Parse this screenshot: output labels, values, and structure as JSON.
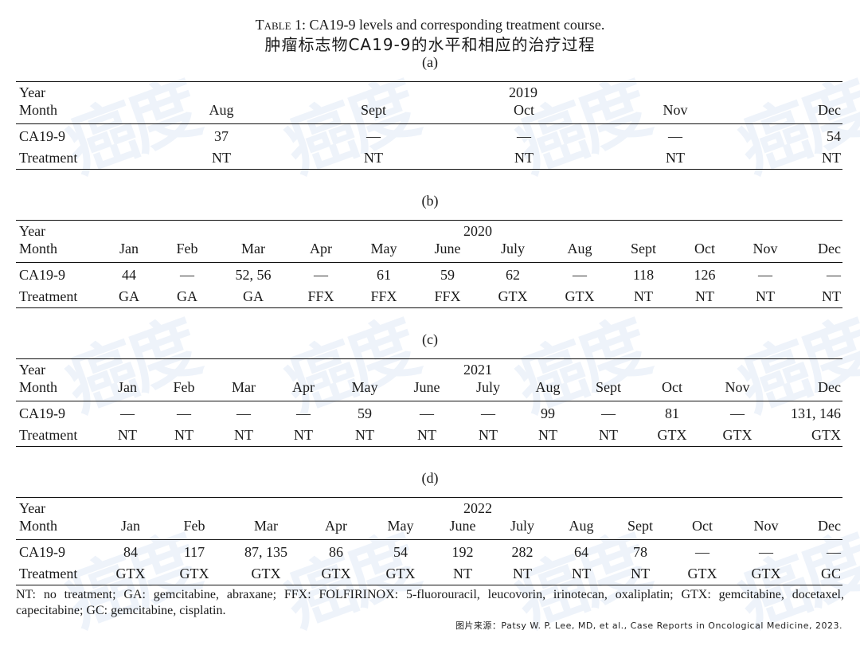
{
  "caption": {
    "table_label": "Table 1:",
    "title_en": "CA19-9 levels and corresponding treatment course.",
    "title_zh": "肿瘤标志物CA19-9的水平和相应的治疗过程"
  },
  "row_labels": {
    "year": "Year",
    "month": "Month",
    "ca199": "CA19-9",
    "treatment": "Treatment"
  },
  "tables": [
    {
      "label": "(a)",
      "year": "2019",
      "months": [
        "Aug",
        "Sept",
        "Oct",
        "Nov",
        "Dec"
      ],
      "ca199": [
        "37",
        "—",
        "—",
        "—",
        "54"
      ],
      "treatment": [
        "NT",
        "NT",
        "NT",
        "NT",
        "NT"
      ]
    },
    {
      "label": "(b)",
      "year": "2020",
      "months": [
        "Jan",
        "Feb",
        "Mar",
        "Apr",
        "May",
        "June",
        "July",
        "Aug",
        "Sept",
        "Oct",
        "Nov",
        "Dec"
      ],
      "ca199": [
        "44",
        "—",
        "52, 56",
        "—",
        "61",
        "59",
        "62",
        "—",
        "118",
        "126",
        "—",
        "—"
      ],
      "treatment": [
        "GA",
        "GA",
        "GA",
        "FFX",
        "FFX",
        "FFX",
        "GTX",
        "GTX",
        "NT",
        "NT",
        "NT",
        "NT"
      ]
    },
    {
      "label": "(c)",
      "year": "2021",
      "months": [
        "Jan",
        "Feb",
        "Mar",
        "Apr",
        "May",
        "June",
        "July",
        "Aug",
        "Sept",
        "Oct",
        "Nov",
        "Dec"
      ],
      "ca199": [
        "—",
        "—",
        "—",
        "—",
        "59",
        "—",
        "—",
        "99",
        "—",
        "81",
        "—",
        "131, 146"
      ],
      "treatment": [
        "NT",
        "NT",
        "NT",
        "NT",
        "NT",
        "NT",
        "NT",
        "NT",
        "NT",
        "GTX",
        "GTX",
        "GTX"
      ]
    },
    {
      "label": "(d)",
      "year": "2022",
      "months": [
        "Jan",
        "Feb",
        "Mar",
        "Apr",
        "May",
        "June",
        "July",
        "Aug",
        "Sept",
        "Oct",
        "Nov",
        "Dec"
      ],
      "ca199": [
        "84",
        "117",
        "87, 135",
        "86",
        "54",
        "192",
        "282",
        "64",
        "78",
        "—",
        "—",
        "—"
      ],
      "treatment": [
        "GTX",
        "GTX",
        "GTX",
        "GTX",
        "GTX",
        "NT",
        "NT",
        "NT",
        "NT",
        "GTX",
        "GTX",
        "GC"
      ]
    }
  ],
  "footnote": "NT: no treatment; GA: gemcitabine, abraxane; FFX: FOLFIRINOX: 5-fluorouracil, leucovorin, irinotecan, oxaliplatin; GTX: gemcitabine, docetaxel, capecitabine; GC: gemcitabine, cisplatin.",
  "source": "图片来源：Patsy W. P. Lee, MD, et al., Case Reports in Oncological Medicine, 2023.",
  "watermark_text": "癌度",
  "colors": {
    "watermark": "#78A0D7",
    "rule": "#111111",
    "text": "#1a1a1a"
  }
}
